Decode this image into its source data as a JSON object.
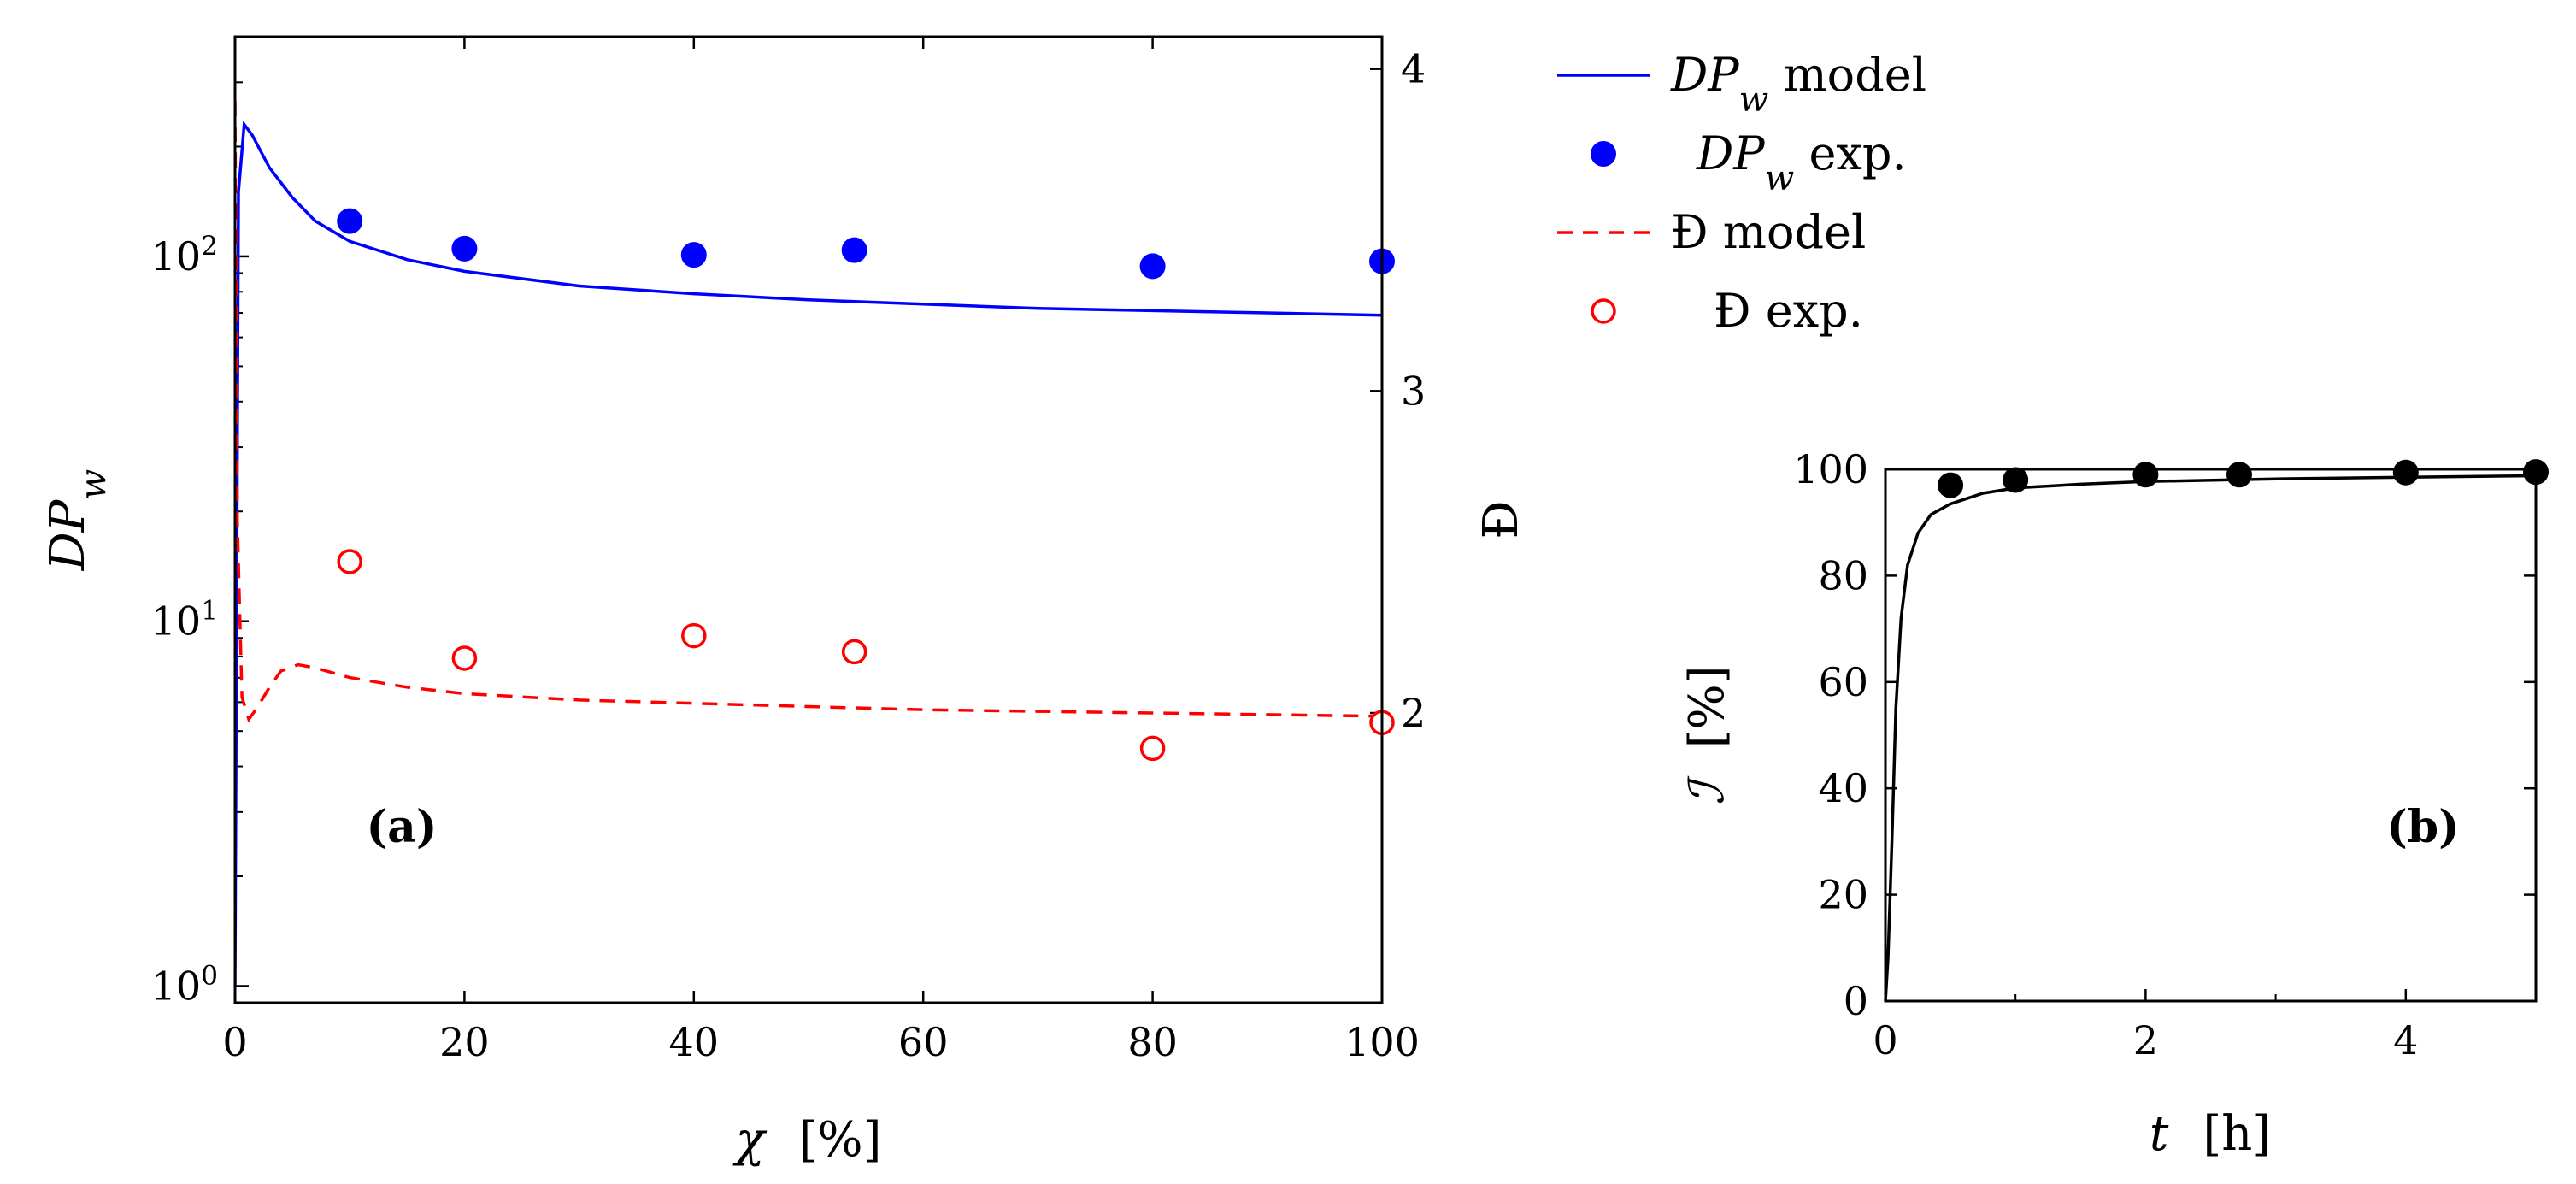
{
  "chart_data": [
    {
      "id": "a",
      "type": "line",
      "panel_label": "(a)",
      "xlabel": "χ",
      "xunit": "[%]",
      "xlim": [
        0,
        100
      ],
      "xticks": [
        "0",
        "20",
        "40",
        "60",
        "80",
        "100"
      ],
      "ylabel_left": "DPw",
      "yscale_left": "log",
      "ylim_left": [
        0.9,
        400
      ],
      "yticks_left": [
        {
          "base": "10",
          "exp": "0"
        },
        {
          "base": "10",
          "exp": "1"
        },
        {
          "base": "10",
          "exp": "2"
        }
      ],
      "ylabel_right": "Đ",
      "ylim_right": [
        1.1,
        4.1
      ],
      "yticks_right": [
        "2",
        "3",
        "4"
      ],
      "legend_position": "outside-right",
      "legend": [
        {
          "series": "dpw_model",
          "label": "DPw model"
        },
        {
          "series": "dpw_exp",
          "label": "DPw exp."
        },
        {
          "series": "d_model",
          "label": "Đ model"
        },
        {
          "series": "d_exp",
          "label": "Đ exp."
        }
      ],
      "series": [
        {
          "name": "dpw_model",
          "axis": "left",
          "style": "line",
          "color": "#0000ff",
          "x": [
            0,
            0.3,
            0.8,
            1.5,
            3,
            5,
            7,
            10,
            15,
            20,
            30,
            40,
            50,
            60,
            70,
            80,
            90,
            100
          ],
          "y": [
            1,
            150,
            230,
            215,
            175,
            145,
            125,
            110,
            98,
            91,
            83,
            79,
            76,
            74,
            72,
            71,
            70,
            69
          ]
        },
        {
          "name": "dpw_exp",
          "axis": "left",
          "style": "marker-filled",
          "color": "#0000ff",
          "x": [
            10,
            20,
            40,
            54,
            80,
            100
          ],
          "y": [
            125,
            105,
            101,
            104,
            94,
            97
          ]
        },
        {
          "name": "d_model",
          "axis": "right",
          "style": "dashed",
          "color": "#ff0000",
          "x": [
            0,
            0.2,
            0.6,
            1.2,
            2,
            3,
            4,
            5.5,
            7,
            10,
            15,
            20,
            30,
            40,
            50,
            60,
            70,
            80,
            90,
            100
          ],
          "y": [
            3.9,
            2.6,
            2.05,
            1.98,
            2.02,
            2.08,
            2.13,
            2.15,
            2.14,
            2.11,
            2.08,
            2.06,
            2.04,
            2.03,
            2.02,
            2.01,
            2.005,
            2.0,
            1.995,
            1.99
          ]
        },
        {
          "name": "d_exp",
          "axis": "right",
          "style": "marker-open",
          "color": "#ff0000",
          "x": [
            10,
            20,
            40,
            54,
            80,
            100
          ],
          "y": [
            2.47,
            2.17,
            2.24,
            2.19,
            1.89,
            1.97
          ]
        }
      ]
    },
    {
      "id": "b",
      "type": "line",
      "panel_label": "(b)",
      "xlabel": "t",
      "xunit": "[h]",
      "xlim": [
        0,
        5
      ],
      "xticks": [
        "0",
        "2",
        "4"
      ],
      "ylabel": "ℐ",
      "yunit": "[%]",
      "ylim": [
        0,
        100
      ],
      "yticks": [
        "0",
        "20",
        "40",
        "60",
        "80",
        "100"
      ],
      "series": [
        {
          "name": "model",
          "style": "line",
          "color": "#000000",
          "x": [
            0,
            0.02,
            0.05,
            0.08,
            0.12,
            0.17,
            0.25,
            0.35,
            0.5,
            0.75,
            1,
            1.5,
            2,
            3,
            4,
            5
          ],
          "y": [
            0,
            8,
            30,
            55,
            72,
            82,
            88,
            91.5,
            93.5,
            95.5,
            96.5,
            97.2,
            97.7,
            98.2,
            98.5,
            98.8
          ]
        },
        {
          "name": "exp",
          "style": "marker-filled",
          "color": "#000000",
          "x": [
            0.5,
            1,
            2,
            2.72,
            4,
            5
          ],
          "y": [
            97,
            98,
            99,
            99,
            99.4,
            99.5
          ]
        }
      ]
    }
  ]
}
